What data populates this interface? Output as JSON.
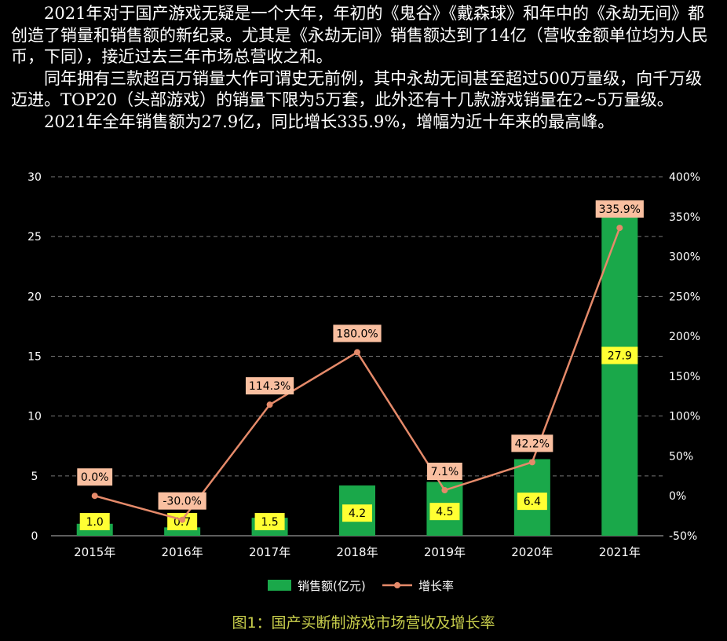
{
  "article": {
    "paragraphs": [
      "2021年对于国产游戏无疑是一个大年，年初的《鬼谷》《戴森球》和年中的《永劫无间》都创造了销量和销售额的新纪录。尤其是《永劫无间》销售额达到了14亿（营收金额单位均为人民币，下同），接近过去三年市场总营收之和。",
      "同年拥有三款超百万销量大作可谓史无前例，其中永劫无间甚至超过500万量级，向千万级迈进。TOP20（头部游戏）的销量下限为5万套，此外还有十几款游戏销量在2~5万量级。",
      "2021年全年销售额为27.9亿，同比增长335.9%，增幅为近十年来的最高峰。"
    ]
  },
  "caption": "图1：国产买断制游戏市场营收及增长率",
  "chart_data": {
    "type": "bar",
    "categories": [
      "2015年",
      "2016年",
      "2017年",
      "2018年",
      "2019年",
      "2020年",
      "2021年"
    ],
    "series": [
      {
        "name": "销售额(亿元)",
        "type": "bar",
        "axis": "left",
        "values": [
          1.0,
          0.7,
          1.5,
          4.2,
          4.5,
          6.4,
          27.9
        ],
        "labels": [
          "1.0",
          "0.7",
          "1.5",
          "4.2",
          "4.5",
          "6.4",
          "27.9"
        ],
        "color": "#1aa84a"
      },
      {
        "name": "增长率",
        "type": "line",
        "axis": "right",
        "values": [
          0.0,
          -30.0,
          114.3,
          180.0,
          7.1,
          42.2,
          335.9
        ],
        "labels": [
          "0.0%",
          "-30.0%",
          "114.3%",
          "180.0%",
          "7.1%",
          "42.2%",
          "335.9%"
        ],
        "color": "#e58a6a"
      }
    ],
    "left_axis": {
      "ylim": [
        0,
        30
      ],
      "ticks": [
        "0",
        "5",
        "10",
        "15",
        "20",
        "25",
        "30"
      ]
    },
    "right_axis": {
      "ylim": [
        -50,
        400
      ],
      "ticks": [
        "-50%",
        "0%",
        "50%",
        "100%",
        "150%",
        "200%",
        "250%",
        "300%",
        "350%",
        "400%"
      ]
    },
    "grid": true,
    "legend_position": "bottom-center",
    "colors": {
      "bar_label_bg": "#ffff33",
      "line_label_bg": "#f9bfa0",
      "grid": "#777777",
      "axis_text": "#ffffff"
    }
  }
}
